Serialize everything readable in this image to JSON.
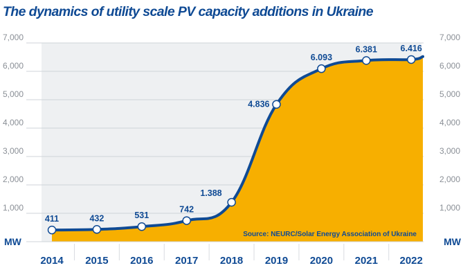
{
  "chart_data": {
    "type": "area",
    "title": "The dynamics of utility scale PV capacity additions in Ukraine",
    "x": [
      "2014",
      "2015",
      "2016",
      "2017",
      "2018",
      "2019",
      "2020",
      "2021",
      "2022"
    ],
    "values": [
      411,
      432,
      531,
      742,
      1388,
      4836,
      6093,
      6381,
      6416
    ],
    "data_labels": [
      "411",
      "432",
      "531",
      "742",
      "1.388",
      "4.836",
      "6.093",
      "6.381",
      "6.416"
    ],
    "ylabel": "MW",
    "ylim": [
      0,
      7000
    ],
    "yticks": [
      "1,000",
      "2,000",
      "3,000",
      "4,000",
      "5,000",
      "6,000",
      "7,000"
    ],
    "source": "Source: NEURC/Solar Energy Association of Ukraine",
    "colors": {
      "line": "#0f4a94",
      "fill": "#f7af00",
      "plot_bg": "#eef0f2"
    }
  }
}
